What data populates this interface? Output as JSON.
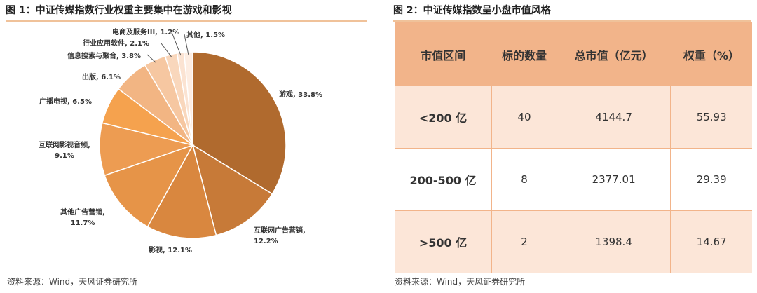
{
  "left": {
    "title": "图 1：中证传媒指数行业权重主要集中在游戏和影视",
    "source": "资料来源：Wind，天风证券研究所"
  },
  "right": {
    "title": "图 2：中证传媒指数呈小盘市值风格",
    "source": "资料来源：Wind，天风证券研究所",
    "table": {
      "headers": [
        "市值区间",
        "标的数量",
        "总市值（亿元）",
        "权重（%）"
      ],
      "rows": [
        [
          "<200 亿",
          "40",
          "4144.7",
          "55.93"
        ],
        [
          "200-500 亿",
          "8",
          "2377.01",
          "29.39"
        ],
        [
          ">500 亿",
          "2",
          "1398.4",
          "14.67"
        ]
      ]
    }
  },
  "chart_data": {
    "type": "pie",
    "title": "",
    "slices": [
      {
        "name": "游戏",
        "value": 33.8,
        "label": "游戏, 33.8%",
        "color": "#B06A2E"
      },
      {
        "name": "互联网广告营销",
        "value": 12.2,
        "label_lines": [
          "互联网广告营销,",
          "12.2%"
        ],
        "color": "#C77A38"
      },
      {
        "name": "影视",
        "value": 12.1,
        "label": "影视, 12.1%",
        "color": "#D9873F"
      },
      {
        "name": "其他广告营销",
        "value": 11.7,
        "label_lines": [
          "其他广告营销,",
          "11.7%"
        ],
        "color": "#E69448"
      },
      {
        "name": "互联网影视音频",
        "value": 9.1,
        "label_lines": [
          "互联网影视音频,",
          "9.1%"
        ],
        "color": "#ED9C52"
      },
      {
        "name": "广播电视",
        "value": 6.5,
        "label": "广播电视, 6.5%",
        "color": "#F5A24E"
      },
      {
        "name": "出版",
        "value": 6.1,
        "label": "出版, 6.1%",
        "color": "#F2B583"
      },
      {
        "name": "信息搜索与聚合",
        "value": 3.8,
        "label": "信息搜索与聚合, 3.8%",
        "color": "#F6C7A1"
      },
      {
        "name": "行业应用软件",
        "value": 2.1,
        "label": "行业应用软件, 2.1%",
        "color": "#F9D7BC"
      },
      {
        "name": "电商及服务III",
        "value": 1.2,
        "label": "电商及服务III, 1.2%",
        "color": "#FBE3D2"
      },
      {
        "name": "其他",
        "value": 1.5,
        "label": "其他, 1.5%",
        "color": "#FDEDE2"
      }
    ]
  }
}
